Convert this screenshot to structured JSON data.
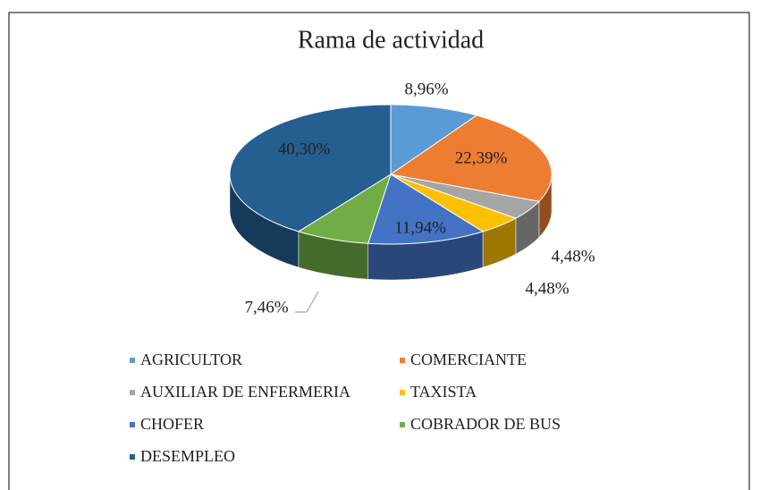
{
  "chart_data": {
    "type": "pie3d",
    "title": "Rama de actividad",
    "categories": [
      "AGRICULTOR",
      "COMERCIANTE",
      "AUXILIAR DE ENFERMERIA",
      "TAXISTA",
      "CHOFER",
      "COBRADOR DE BUS",
      "DESEMPLEO"
    ],
    "values": [
      8.96,
      22.39,
      4.48,
      4.48,
      11.94,
      7.46,
      40.3
    ],
    "value_labels": [
      "8,96%",
      "22,39%",
      "4,48%",
      "4,48%",
      "11,94%",
      "7,46%",
      "40,30%"
    ],
    "colors": [
      "#5b9bd5",
      "#ed7d31",
      "#a5a5a5",
      "#ffc000",
      "#4472c4",
      "#70ad47",
      "#255e91"
    ],
    "legend": "bottom"
  }
}
